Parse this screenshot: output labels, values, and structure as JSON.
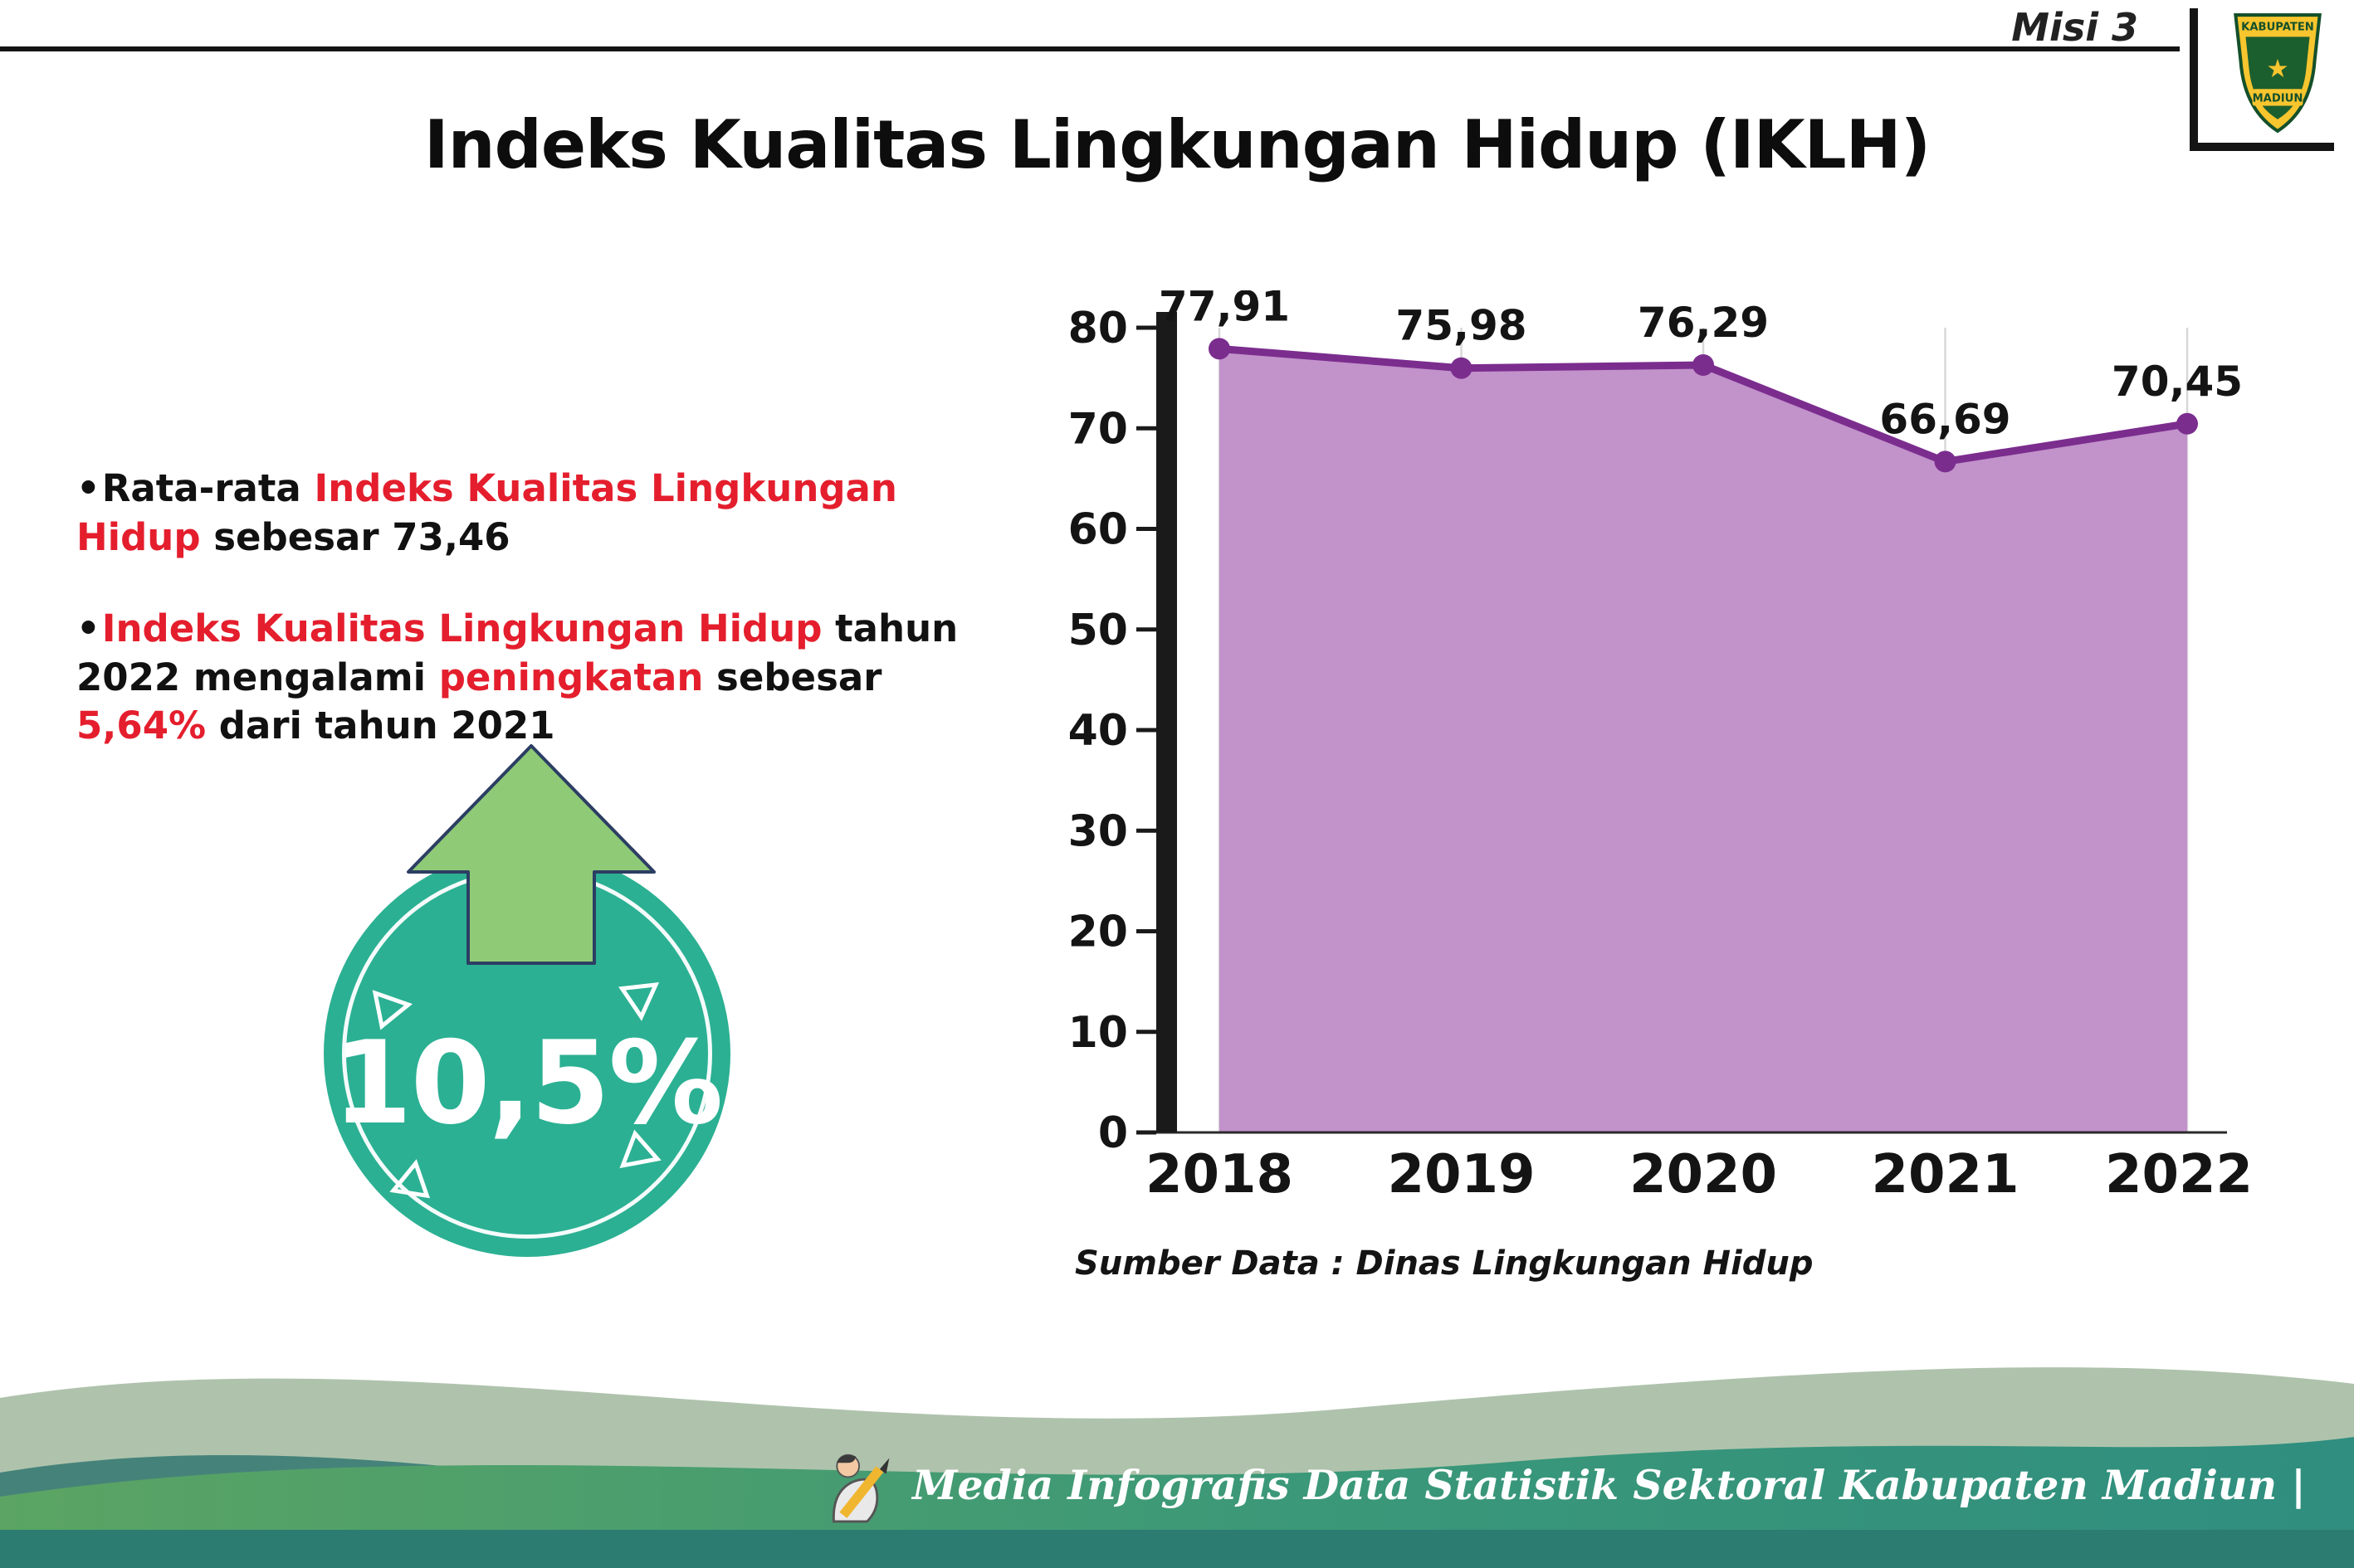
{
  "header": {
    "misi_label": "Misi 3"
  },
  "logo": {
    "top_text": "KABUPATEN",
    "bottom_text": "MADIUN"
  },
  "title": "Indeks Kualitas Lingkungan Hidup (IKLH)",
  "bullets": {
    "marker": "•",
    "b1": {
      "segments": [
        {
          "text": "Rata-rata ",
          "red": false
        },
        {
          "text": "Indeks Kualitas Lingkungan Hidup",
          "red": true
        },
        {
          "text": " sebesar 73,46",
          "red": false
        }
      ]
    },
    "b2": {
      "segments": [
        {
          "text": "Indeks Kualitas Lingkungan Hidup",
          "red": true
        },
        {
          "text": " tahun 2022 mengalami ",
          "red": false
        },
        {
          "text": "peningkatan",
          "red": true
        },
        {
          "text": " sebesar ",
          "red": false
        },
        {
          "text": "5,64%",
          "red": true
        },
        {
          "text": " dari tahun 2021",
          "red": false
        }
      ]
    }
  },
  "badge": {
    "value": "10,5%"
  },
  "chart_data": {
    "type": "area",
    "categories": [
      "2018",
      "2019",
      "2020",
      "2021",
      "2022"
    ],
    "values": [
      77.91,
      75.98,
      76.29,
      66.69,
      70.45
    ],
    "labels": [
      "77,91",
      "75,98",
      "76,29",
      "66,69",
      "70,45"
    ],
    "title": "",
    "xlabel": "",
    "ylabel": "",
    "ylim": [
      0,
      80
    ],
    "y_ticks": [
      0,
      10,
      20,
      30,
      40,
      50,
      60,
      70,
      80
    ],
    "grid": "vertical",
    "legend": "none",
    "area_color": "#c292cb",
    "line_color": "#7b2d8e"
  },
  "source": "Sumber Data : Dinas Lingkungan Hidup",
  "footer": {
    "credit": "Media Infografis Data Statistik Sektoral Kabupaten Madiun |"
  }
}
